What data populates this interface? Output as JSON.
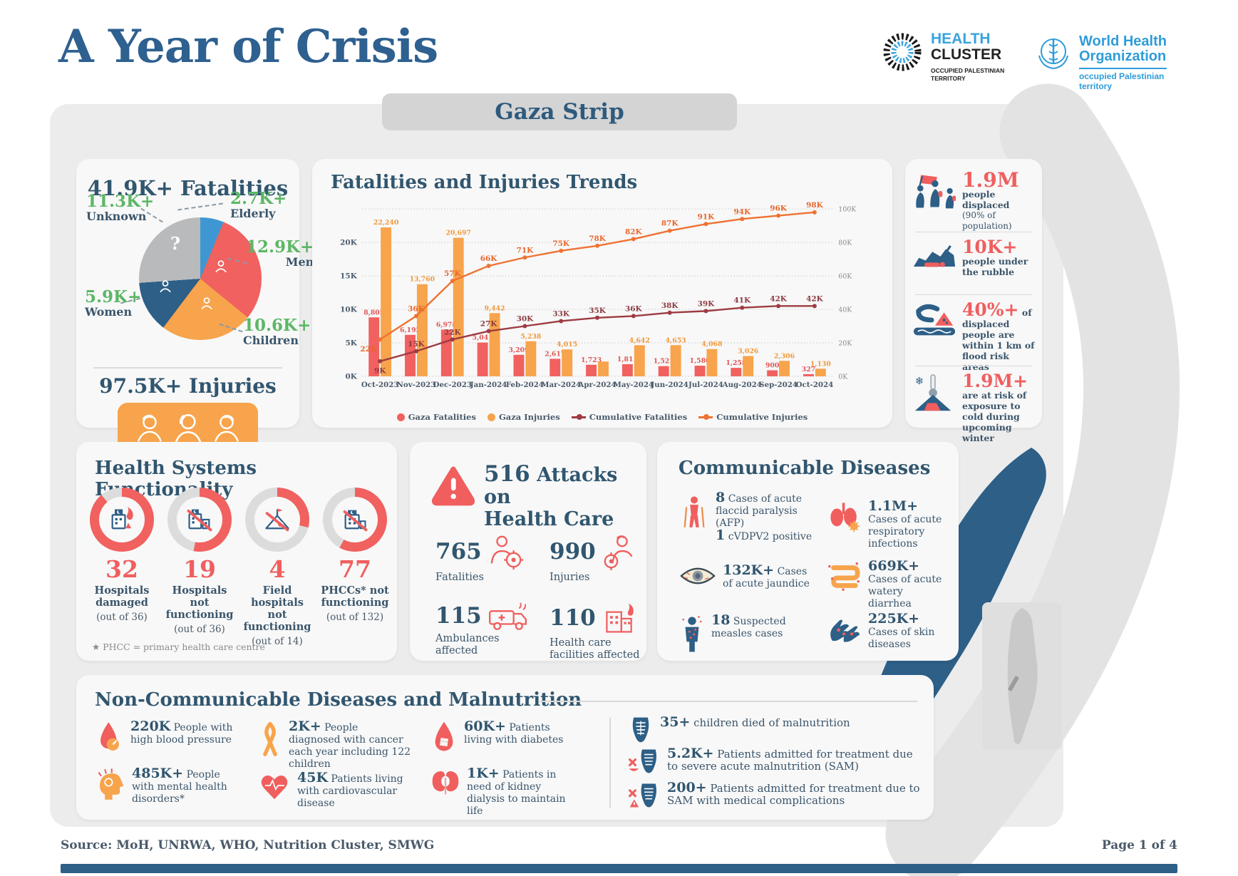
{
  "header": {
    "title": "A Year of Crisis",
    "banner": "Gaza Strip",
    "logos": {
      "health_cluster": {
        "name1": "HEALTH",
        "name2": "CLUSTER",
        "sub1": "OCCUPIED PALESTINIAN",
        "sub2": "TERRITORY"
      },
      "who": {
        "name1": "World Health",
        "name2": "Organization",
        "sub1": "occupied Palestinian",
        "sub2": "territory"
      }
    }
  },
  "fatalities_panel": {
    "number": "41.9K+",
    "label": "Fatalities",
    "slices": [
      {
        "label": "Elderly",
        "value": "2.7K+",
        "color": "#3e97d3",
        "pct": 6.2
      },
      {
        "label": "Men",
        "value": "12.9K+",
        "color": "#f0615f",
        "pct": 29.7
      },
      {
        "label": "Children",
        "value": "10.6K+",
        "color": "#f7a44c",
        "pct": 24.4
      },
      {
        "label": "Women",
        "value": "5.9K+",
        "color": "#2d5f87",
        "pct": 13.6
      },
      {
        "label": "Unknown",
        "value": "11.3K+",
        "color": "#b9babc",
        "pct": 26.1
      }
    ],
    "accent_color": "#5cb765",
    "injuries_number": "97.5K+",
    "injuries_label": "Injuries"
  },
  "chart_data": {
    "type": "bar+line",
    "title": "Fatalities and Injuries Trends",
    "categories": [
      "Oct-2023",
      "Nov-2023",
      "Dec-2023",
      "Jan-2024",
      "Feb-2024",
      "Mar-2024",
      "Apr-2024",
      "May-2024",
      "Jun-2024",
      "Jul-2024",
      "Aug-2024",
      "Sep-2024",
      "Oct-2024"
    ],
    "left_axis": {
      "ticks": [
        "0K",
        "5K",
        "10K",
        "15K",
        "20K"
      ],
      "max": 25000
    },
    "right_axis": {
      "ticks": [
        "0K",
        "20K",
        "40K",
        "60K",
        "80K",
        "100K"
      ],
      "max": 100
    },
    "grid": true,
    "legend_position": "bottom",
    "series": [
      {
        "name": "Gaza Fatalities",
        "type": "bar",
        "axis": "left",
        "color": "#f0615f",
        "label_color": "#e05555",
        "values": [
          8805,
          6195,
          6978,
          5041,
          3209,
          2617,
          1723,
          1811,
          1521,
          1580,
          1258,
          900,
          327
        ],
        "labels": [
          "8,805",
          "6,195",
          "6,978",
          "5,041",
          "3,209",
          "2,617",
          "1,723",
          "1,811",
          "1,521",
          "1,580",
          "1,258",
          "900",
          "327"
        ]
      },
      {
        "name": "Gaza Injuries",
        "type": "bar",
        "axis": "left",
        "color": "#f7a44c",
        "label_color": "#f0983a",
        "values": [
          22240,
          13760,
          20697,
          9442,
          5238,
          4015,
          2200,
          4642,
          4653,
          4068,
          3026,
          2306,
          1130
        ],
        "labels": [
          "22,240",
          "13,760",
          "20,697",
          "9,442",
          "5,238",
          "4,015",
          "",
          "4,642",
          "4,653",
          "4,068",
          "3,026",
          "2,306",
          "1,130"
        ]
      },
      {
        "name": "Cumulative Fatalities",
        "type": "line",
        "axis": "right",
        "color": "#9e3b42",
        "label_color": "#8c3b42",
        "values": [
          9,
          15,
          22,
          27,
          30,
          33,
          35,
          36,
          38,
          39,
          41,
          42,
          42
        ],
        "labels": [
          "9K",
          "15K",
          "22K",
          "27K",
          "30K",
          "33K",
          "35K",
          "36K",
          "38K",
          "39K",
          "41K",
          "42K",
          "42K"
        ]
      },
      {
        "name": "Cumulative Injuries",
        "type": "line",
        "axis": "right",
        "color": "#ef7233",
        "label_color": "#e8662c",
        "values": [
          22,
          36,
          57,
          66,
          71,
          75,
          78,
          82,
          87,
          91,
          94,
          96,
          98
        ],
        "labels": [
          "22K",
          "36K",
          "57K",
          "66K",
          "71K",
          "75K",
          "78K",
          "82K",
          "87K",
          "91K",
          "94K",
          "96K",
          "98K"
        ]
      }
    ]
  },
  "displacement_panel": {
    "items": [
      {
        "number": "1.9M",
        "text": "people displaced",
        "subtext": "(90% of population)",
        "icon": "displaced-people-icon"
      },
      {
        "number": "10K+",
        "text": "people under the rubble",
        "icon": "rubble-icon"
      },
      {
        "number": "40%+",
        "text": "of displaced people are within 1 km of flood risk areas",
        "icon": "flood-icon"
      },
      {
        "number": "1.9M+",
        "text": "are at risk of exposure to cold during upcoming winter",
        "icon": "cold-icon"
      }
    ]
  },
  "health_systems": {
    "title": "Health Systems Functionality",
    "items": [
      {
        "number": "32",
        "label": "Hospitals damaged",
        "sub": "(out of 36)",
        "pct": 89
      },
      {
        "number": "19",
        "label": "Hospitals not functioning",
        "sub": "(out of 36)",
        "pct": 53
      },
      {
        "number": "4",
        "label": "Field hospitals not functioning",
        "sub": "(out of 14)",
        "pct": 29
      },
      {
        "number": "77",
        "label": "PHCCs* not functioning",
        "sub": "(out of 132)",
        "pct": 58
      }
    ],
    "footnote": "★ PHCC = primary health care centre"
  },
  "attacks": {
    "number": "516",
    "title_line1": "Attacks on",
    "title_line2": "Health Care",
    "items": [
      {
        "number": "765",
        "label": "Fatalities",
        "icon": "doctor-target-icon"
      },
      {
        "number": "990",
        "label": "Injuries",
        "icon": "nurse-target-icon"
      },
      {
        "number": "115",
        "label": "Ambulances affected",
        "icon": "ambulance-icon"
      },
      {
        "number": "110",
        "label": "Health care facilities affected",
        "icon": "health-facility-icon"
      }
    ]
  },
  "communicable": {
    "title": "Communicable Diseases",
    "items": [
      {
        "number": "8",
        "text": "Cases of acute flaccid paralysis (AFP)",
        "number2": "1",
        "text2": "cVDPV2 positive",
        "icon": "afp-icon"
      },
      {
        "number": "1.1M+",
        "text": "Cases of acute respiratory infections",
        "icon": "lungs-icon"
      },
      {
        "number": "132K+",
        "text": "Cases of acute jaundice",
        "icon": "jaundice-eye-icon"
      },
      {
        "number": "669K+",
        "text": "Cases of acute watery diarrhea",
        "icon": "intestine-icon"
      },
      {
        "number": "18",
        "text": "Suspected measles cases",
        "icon": "measles-icon"
      },
      {
        "number": "225K+",
        "text": "Cases of skin diseases",
        "icon": "skin-diseases-icon"
      }
    ]
  },
  "ncd": {
    "title": "Non-Communicable Diseases and Malnutrition",
    "left_items": [
      {
        "number": "220K",
        "text": "People with high blood pressure",
        "icon": "blood-pressure-icon"
      },
      {
        "number": "485K+",
        "text": "People with mental health disorders*",
        "icon": "mental-health-icon"
      },
      {
        "number": "2K+",
        "text": "People diagnosed with cancer each year including 122 children",
        "icon": "cancer-ribbon-icon"
      },
      {
        "number": "45K",
        "text": "Patients living with cardiovascular disease",
        "icon": "heart-icon"
      },
      {
        "number": "60K+",
        "text": "Patients living with diabetes",
        "icon": "diabetes-icon"
      },
      {
        "number": "1K+",
        "text": "Patients in need of kidney dialysis to maintain life",
        "icon": "kidney-icon"
      }
    ],
    "right_items": [
      {
        "number": "35+",
        "text": "children died of malnutrition",
        "icon": "malnutrition-icon"
      },
      {
        "number": "5.2K+",
        "text": "Patients admitted for treatment due to severe acute malnutrition (SAM)",
        "icon": "sam-icon"
      },
      {
        "number": "200+",
        "text": "Patients admitted for treatment due to SAM with medical complications",
        "icon": "sam-complications-icon"
      }
    ]
  },
  "footer": {
    "source": "Source: MoH, UNRWA, WHO, Nutrition Cluster, SMWG",
    "page": "Page 1 of 4"
  },
  "colors": {
    "navy": "#34536e",
    "heading": "#2e5f8c",
    "red": "#f05e5e",
    "orange": "#f7a44c",
    "maroon": "#9e3b42",
    "green": "#5cb765",
    "bar_blue": "#2d5f87"
  }
}
